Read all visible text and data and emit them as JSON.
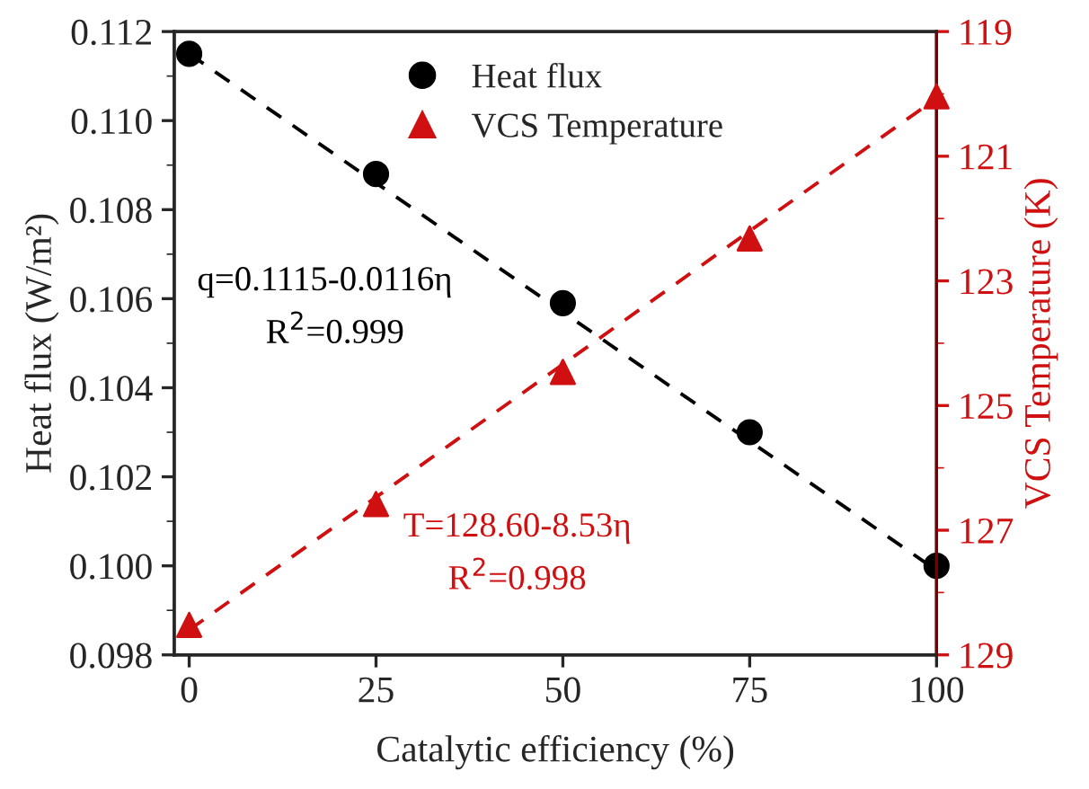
{
  "chart_data": {
    "type": "scatter",
    "xlabel": "Catalytic efficiency (%)",
    "ylabel": "Heat flux (W/m²)",
    "y2label": "VCS Temperature (K)",
    "x": [
      0,
      25,
      50,
      75,
      100
    ],
    "xlim": [
      -2,
      100
    ],
    "xticks": [
      0,
      25,
      50,
      75,
      100
    ],
    "ylim": [
      0.098,
      0.112
    ],
    "yticks": [
      {
        "value": 0.098,
        "label": "0.098"
      },
      {
        "value": 0.1,
        "label": "0.100"
      },
      {
        "value": 0.102,
        "label": "0.102"
      },
      {
        "value": 0.104,
        "label": "0.104"
      },
      {
        "value": 0.106,
        "label": "0.106"
      },
      {
        "value": 0.108,
        "label": "0.108"
      },
      {
        "value": 0.11,
        "label": "0.110"
      },
      {
        "value": 0.112,
        "label": "0.112"
      }
    ],
    "y2lim": [
      129,
      119
    ],
    "y2ticks": [
      119,
      121,
      123,
      125,
      127,
      129
    ],
    "series": [
      {
        "name": "Heat flux",
        "marker": "circle",
        "color": "#000000",
        "values": [
          0.1115,
          0.1088,
          0.1059,
          0.103,
          0.1
        ]
      },
      {
        "name": "VCS Temperature",
        "marker": "triangle",
        "color": "#d01010",
        "axis": "y2",
        "values": [
          128.52,
          126.58,
          124.46,
          122.32,
          120.04
        ]
      },
      {
        "type": "line",
        "line_style": "dashed",
        "color": "#000000",
        "x": [
          0,
          25,
          50,
          75,
          100
        ],
        "values": [
          0.1115,
          0.1086,
          0.1057,
          0.1028,
          0.0999
        ]
      },
      {
        "type": "line",
        "line_style": "dashed",
        "color": "#d01010",
        "axis": "y2",
        "x": [
          0,
          25,
          50,
          75,
          100
        ],
        "values": [
          128.6,
          126.47,
          124.34,
          122.2,
          120.07
        ]
      }
    ],
    "annotations": [
      "q=0.1115-0.0116η",
      "R$^{2}$=0.999",
      "T=128.60-8.53η",
      "R$^{2}$=0.998"
    ],
    "legend": "top",
    "grid": false
  }
}
